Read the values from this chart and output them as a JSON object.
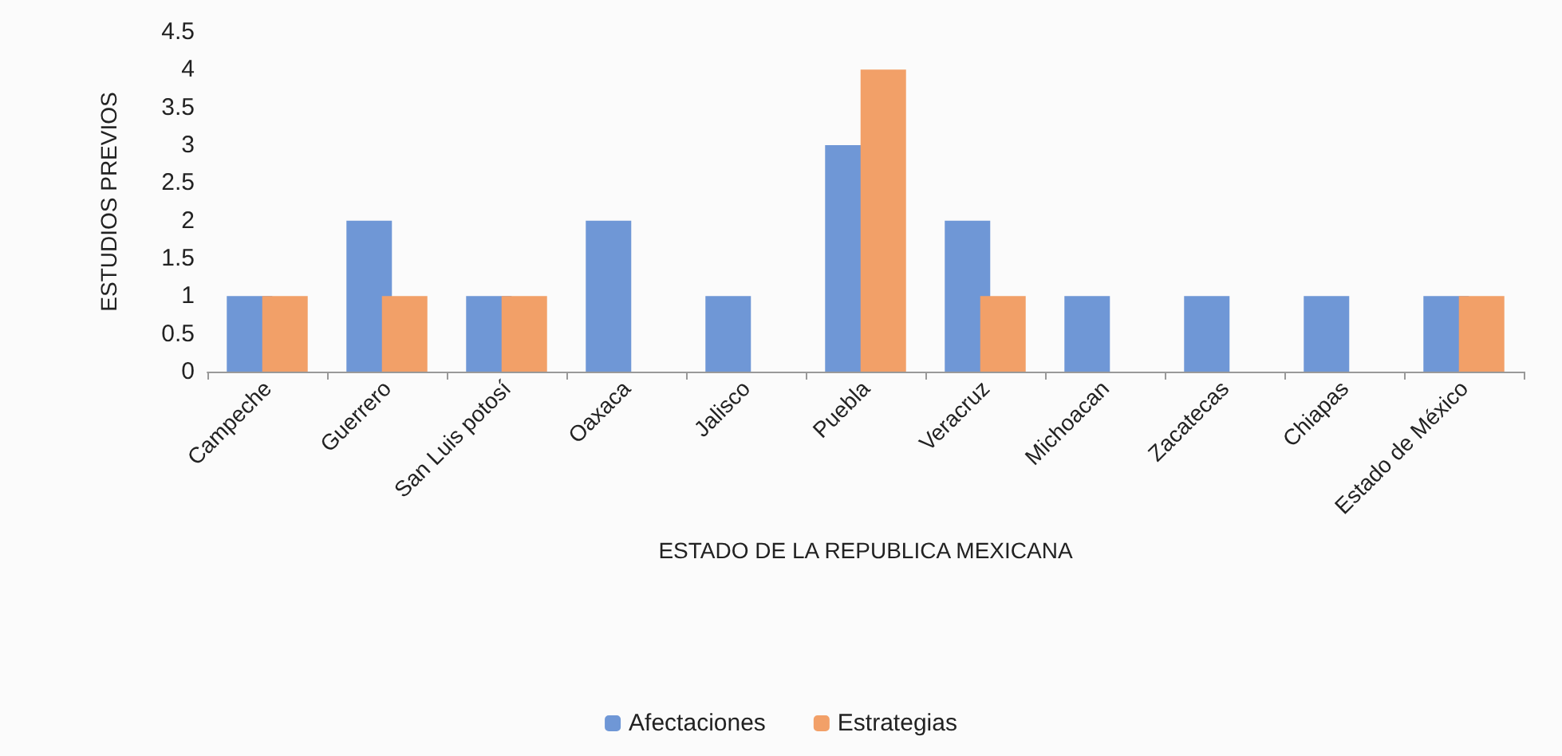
{
  "chart_data": {
    "type": "bar",
    "xlabel": "ESTADO DE LA REPUBLICA MEXICANA",
    "ylabel": "ESTUDIOS PREVIOS",
    "categories": [
      "Campeche",
      "Guerrero",
      "San Luis potosí",
      "Oaxaca",
      "Jalisco",
      "Puebla",
      "Veracruz",
      "Michoacan",
      "Zacatecas",
      "Chiapas",
      "Estado de México"
    ],
    "series": [
      {
        "name": "Afectaciones",
        "color": "#6f97d6",
        "values": [
          1,
          2,
          1,
          2,
          1,
          3,
          2,
          1,
          1,
          1,
          1
        ]
      },
      {
        "name": "Estrategias",
        "color": "#f2a068",
        "values": [
          1,
          1,
          1,
          null,
          null,
          4,
          1,
          null,
          null,
          null,
          1
        ]
      }
    ],
    "ylim": [
      0,
      4.5
    ],
    "yticks": [
      0,
      0.5,
      1,
      1.5,
      2,
      2.5,
      3,
      3.5,
      4,
      4.5
    ],
    "grid": false,
    "legend": "bottom"
  }
}
